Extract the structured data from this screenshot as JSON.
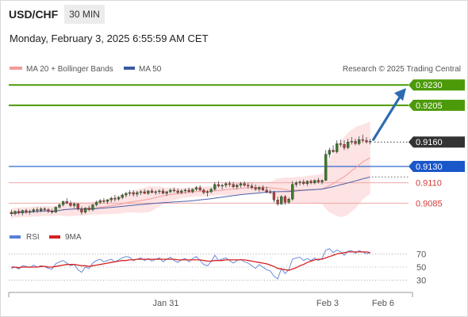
{
  "header": {
    "symbol": "USD/CHF",
    "interval": "30 MIN",
    "datetime": "Monday, February 3, 2025 6:55:59 AM CET"
  },
  "legend": {
    "ma20_label": "MA 20 + Bollinger Bands",
    "ma50_label": "MA 50",
    "credit": "Research © 2025 Trading Central"
  },
  "colors": {
    "resistance": "#4c9a09",
    "support": "#f0a7a7",
    "support_text": "#d23b3b",
    "pivot": "#1a57c9",
    "current": "#333333",
    "arrow": "#2e6bb0",
    "ma20": "#f39b9b",
    "ma50": "#4a60a8",
    "bollinger_fill": "#fde3e3",
    "candle_up": "#3a7d2c",
    "candle_down": "#c23a3a",
    "rsi": "#5a7fd6",
    "rsi_ma": "#d62020"
  },
  "price_levels": [
    {
      "value": "0.9230",
      "kind": "resistance"
    },
    {
      "value": "0.9205",
      "kind": "resistance"
    },
    {
      "value": "0.9160",
      "kind": "current"
    },
    {
      "value": "0.9130",
      "kind": "pivot"
    },
    {
      "value": "0.9110",
      "kind": "support"
    },
    {
      "value": "0.9085",
      "kind": "support"
    }
  ],
  "chart_data": [
    {
      "type": "candlestick",
      "title": "USD/CHF 30 MIN",
      "y_range": [
        0.9062,
        0.9237
      ],
      "x_ticks": [
        "Jan 31",
        "Feb 3",
        "Feb 6"
      ],
      "series": [
        {
          "name": "MA 20 + Bollinger Bands"
        },
        {
          "name": "MA 50"
        }
      ],
      "ohlc": [
        [
          0.9074,
          0.9077,
          0.9069,
          0.9072
        ],
        [
          0.9072,
          0.9076,
          0.907,
          0.9075
        ],
        [
          0.9075,
          0.9078,
          0.9071,
          0.9073
        ],
        [
          0.9073,
          0.9077,
          0.907,
          0.9076
        ],
        [
          0.9076,
          0.9078,
          0.9072,
          0.9074
        ],
        [
          0.9074,
          0.9077,
          0.9071,
          0.9075
        ],
        [
          0.9075,
          0.9079,
          0.9073,
          0.9077
        ],
        [
          0.9077,
          0.908,
          0.9073,
          0.9076
        ],
        [
          0.9076,
          0.908,
          0.9074,
          0.9078
        ],
        [
          0.9078,
          0.908,
          0.9075,
          0.9077
        ],
        [
          0.9077,
          0.9079,
          0.9073,
          0.9075
        ],
        [
          0.9075,
          0.9078,
          0.9072,
          0.9074
        ],
        [
          0.9074,
          0.9081,
          0.9073,
          0.908
        ],
        [
          0.908,
          0.9085,
          0.9078,
          0.9083
        ],
        [
          0.9083,
          0.9088,
          0.9081,
          0.9087
        ],
        [
          0.9087,
          0.9091,
          0.9084,
          0.9085
        ],
        [
          0.9085,
          0.9088,
          0.908,
          0.9082
        ],
        [
          0.9082,
          0.9086,
          0.9079,
          0.9084
        ],
        [
          0.9084,
          0.9085,
          0.9076,
          0.9078
        ],
        [
          0.9078,
          0.9081,
          0.9071,
          0.9074
        ],
        [
          0.9074,
          0.908,
          0.9072,
          0.9079
        ],
        [
          0.9079,
          0.9082,
          0.9075,
          0.9077
        ],
        [
          0.9077,
          0.9084,
          0.9075,
          0.9083
        ],
        [
          0.9083,
          0.9088,
          0.9081,
          0.9086
        ],
        [
          0.9086,
          0.909,
          0.9084,
          0.9088
        ],
        [
          0.9088,
          0.9091,
          0.9085,
          0.9087
        ],
        [
          0.9087,
          0.909,
          0.9084,
          0.9089
        ],
        [
          0.9089,
          0.9093,
          0.9086,
          0.9091
        ],
        [
          0.9091,
          0.9095,
          0.9087,
          0.909
        ],
        [
          0.909,
          0.9094,
          0.9088,
          0.9092
        ],
        [
          0.9092,
          0.9097,
          0.909,
          0.9095
        ],
        [
          0.9095,
          0.9099,
          0.9092,
          0.9097
        ],
        [
          0.9097,
          0.9101,
          0.9094,
          0.9098
        ],
        [
          0.9098,
          0.9101,
          0.9093,
          0.9096
        ],
        [
          0.9096,
          0.91,
          0.9093,
          0.9098
        ],
        [
          0.9098,
          0.9101,
          0.9095,
          0.9099
        ],
        [
          0.9099,
          0.9102,
          0.9096,
          0.9097
        ],
        [
          0.9097,
          0.9101,
          0.9095,
          0.91
        ],
        [
          0.91,
          0.9103,
          0.9097,
          0.9098
        ],
        [
          0.9098,
          0.9101,
          0.9095,
          0.9099
        ],
        [
          0.9099,
          0.9102,
          0.9096,
          0.91
        ],
        [
          0.91,
          0.9103,
          0.9096,
          0.9097
        ],
        [
          0.9097,
          0.91,
          0.9094,
          0.9099
        ],
        [
          0.9099,
          0.9103,
          0.9097,
          0.9101
        ],
        [
          0.9101,
          0.9104,
          0.9098,
          0.91
        ],
        [
          0.91,
          0.9103,
          0.9096,
          0.9098
        ],
        [
          0.9098,
          0.9102,
          0.9096,
          0.91
        ],
        [
          0.91,
          0.9103,
          0.9097,
          0.9101
        ],
        [
          0.9101,
          0.9104,
          0.9098,
          0.9099
        ],
        [
          0.9099,
          0.9103,
          0.9097,
          0.9102
        ],
        [
          0.9102,
          0.9106,
          0.91,
          0.9104
        ],
        [
          0.9104,
          0.9107,
          0.91,
          0.9101
        ],
        [
          0.9101,
          0.9103,
          0.9096,
          0.9098
        ],
        [
          0.9098,
          0.9101,
          0.9093,
          0.9099
        ],
        [
          0.9099,
          0.9104,
          0.9097,
          0.9102
        ],
        [
          0.9102,
          0.9111,
          0.91,
          0.9108
        ],
        [
          0.9108,
          0.9112,
          0.9104,
          0.9106
        ],
        [
          0.9106,
          0.9109,
          0.9102,
          0.9107
        ],
        [
          0.9107,
          0.9111,
          0.9104,
          0.9109
        ],
        [
          0.9109,
          0.9112,
          0.9105,
          0.9108
        ],
        [
          0.9108,
          0.9111,
          0.9103,
          0.9105
        ],
        [
          0.9105,
          0.9109,
          0.9102,
          0.9107
        ],
        [
          0.9107,
          0.9111,
          0.9104,
          0.9109
        ],
        [
          0.9109,
          0.9112,
          0.9105,
          0.9107
        ],
        [
          0.9107,
          0.911,
          0.9103,
          0.9106
        ],
        [
          0.9106,
          0.9109,
          0.9102,
          0.9104
        ],
        [
          0.9104,
          0.9108,
          0.91,
          0.9102
        ],
        [
          0.9102,
          0.9106,
          0.9099,
          0.9104
        ],
        [
          0.9104,
          0.9107,
          0.91,
          0.9101
        ],
        [
          0.9101,
          0.9105,
          0.9097,
          0.9099
        ],
        [
          0.9099,
          0.9102,
          0.9096,
          0.9098
        ],
        [
          0.9098,
          0.91,
          0.9086,
          0.9089
        ],
        [
          0.9089,
          0.9093,
          0.9082,
          0.9084
        ],
        [
          0.9084,
          0.9095,
          0.9083,
          0.9093
        ],
        [
          0.9093,
          0.9095,
          0.9083,
          0.9086
        ],
        [
          0.9086,
          0.9092,
          0.9084,
          0.909
        ],
        [
          0.909,
          0.9112,
          0.9088,
          0.9108
        ],
        [
          0.9108,
          0.9112,
          0.9105,
          0.911
        ],
        [
          0.911,
          0.9113,
          0.9107,
          0.9111
        ],
        [
          0.9111,
          0.9114,
          0.9107,
          0.9109
        ],
        [
          0.9109,
          0.9113,
          0.9106,
          0.9112
        ],
        [
          0.9112,
          0.9114,
          0.9108,
          0.911
        ],
        [
          0.911,
          0.9114,
          0.9108,
          0.9113
        ],
        [
          0.9113,
          0.9116,
          0.9109,
          0.9111
        ],
        [
          0.9111,
          0.9114,
          0.9108,
          0.9113
        ],
        [
          0.9113,
          0.915,
          0.9112,
          0.9145
        ],
        [
          0.9145,
          0.9153,
          0.9141,
          0.915
        ],
        [
          0.915,
          0.9156,
          0.9147,
          0.9148
        ],
        [
          0.9148,
          0.9162,
          0.9146,
          0.9158
        ],
        [
          0.9158,
          0.9163,
          0.9154,
          0.9157
        ],
        [
          0.9157,
          0.9162,
          0.915,
          0.9153
        ],
        [
          0.9153,
          0.9164,
          0.9151,
          0.916
        ],
        [
          0.916,
          0.9166,
          0.9157,
          0.9161
        ],
        [
          0.9161,
          0.9164,
          0.9156,
          0.9158
        ],
        [
          0.9158,
          0.9167,
          0.9156,
          0.9163
        ],
        [
          0.9163,
          0.9169,
          0.9159,
          0.9162
        ],
        [
          0.9162,
          0.9166,
          0.9158,
          0.916
        ],
        [
          0.916,
          0.9164,
          0.9157,
          0.9161
        ]
      ]
    },
    {
      "type": "line",
      "title": "RSI",
      "y_ticks": [
        70,
        50,
        30
      ],
      "y_range": [
        15,
        85
      ],
      "series": [
        {
          "name": "RSI",
          "values": [
            48,
            50,
            47,
            52,
            51,
            49,
            53,
            50,
            52,
            51,
            48,
            47,
            55,
            58,
            60,
            56,
            52,
            54,
            46,
            42,
            50,
            48,
            56,
            60,
            62,
            58,
            60,
            62,
            58,
            61,
            64,
            66,
            65,
            60,
            62,
            64,
            60,
            63,
            59,
            62,
            64,
            58,
            62,
            65,
            60,
            57,
            61,
            63,
            58,
            63,
            66,
            60,
            54,
            52,
            58,
            68,
            60,
            62,
            64,
            60,
            56,
            60,
            62,
            58,
            56,
            52,
            48,
            54,
            50,
            46,
            44,
            36,
            32,
            48,
            40,
            46,
            62,
            64,
            65,
            60,
            63,
            60,
            64,
            60,
            63,
            76,
            78,
            72,
            76,
            73,
            68,
            74,
            75,
            71,
            75,
            73,
            70,
            72
          ]
        },
        {
          "name": "9MA",
          "values": [
            50,
            50,
            49,
            50,
            50,
            50,
            50,
            50,
            51,
            51,
            50,
            50,
            51,
            52,
            53,
            54,
            54,
            54,
            53,
            52,
            52,
            51,
            52,
            53,
            54,
            55,
            56,
            57,
            58,
            59,
            60,
            60,
            61,
            61,
            62,
            62,
            62,
            62,
            62,
            62,
            62,
            62,
            62,
            62,
            62,
            61,
            61,
            61,
            61,
            61,
            61,
            61,
            60,
            59,
            59,
            60,
            60,
            60,
            61,
            61,
            61,
            61,
            61,
            61,
            60,
            59,
            58,
            57,
            56,
            55,
            53,
            51,
            48,
            47,
            46,
            45,
            47,
            49,
            52,
            54,
            57,
            59,
            61,
            62,
            62,
            64,
            66,
            68,
            70,
            71,
            72,
            73,
            73,
            73,
            73,
            73,
            73,
            72
          ]
        }
      ]
    }
  ]
}
